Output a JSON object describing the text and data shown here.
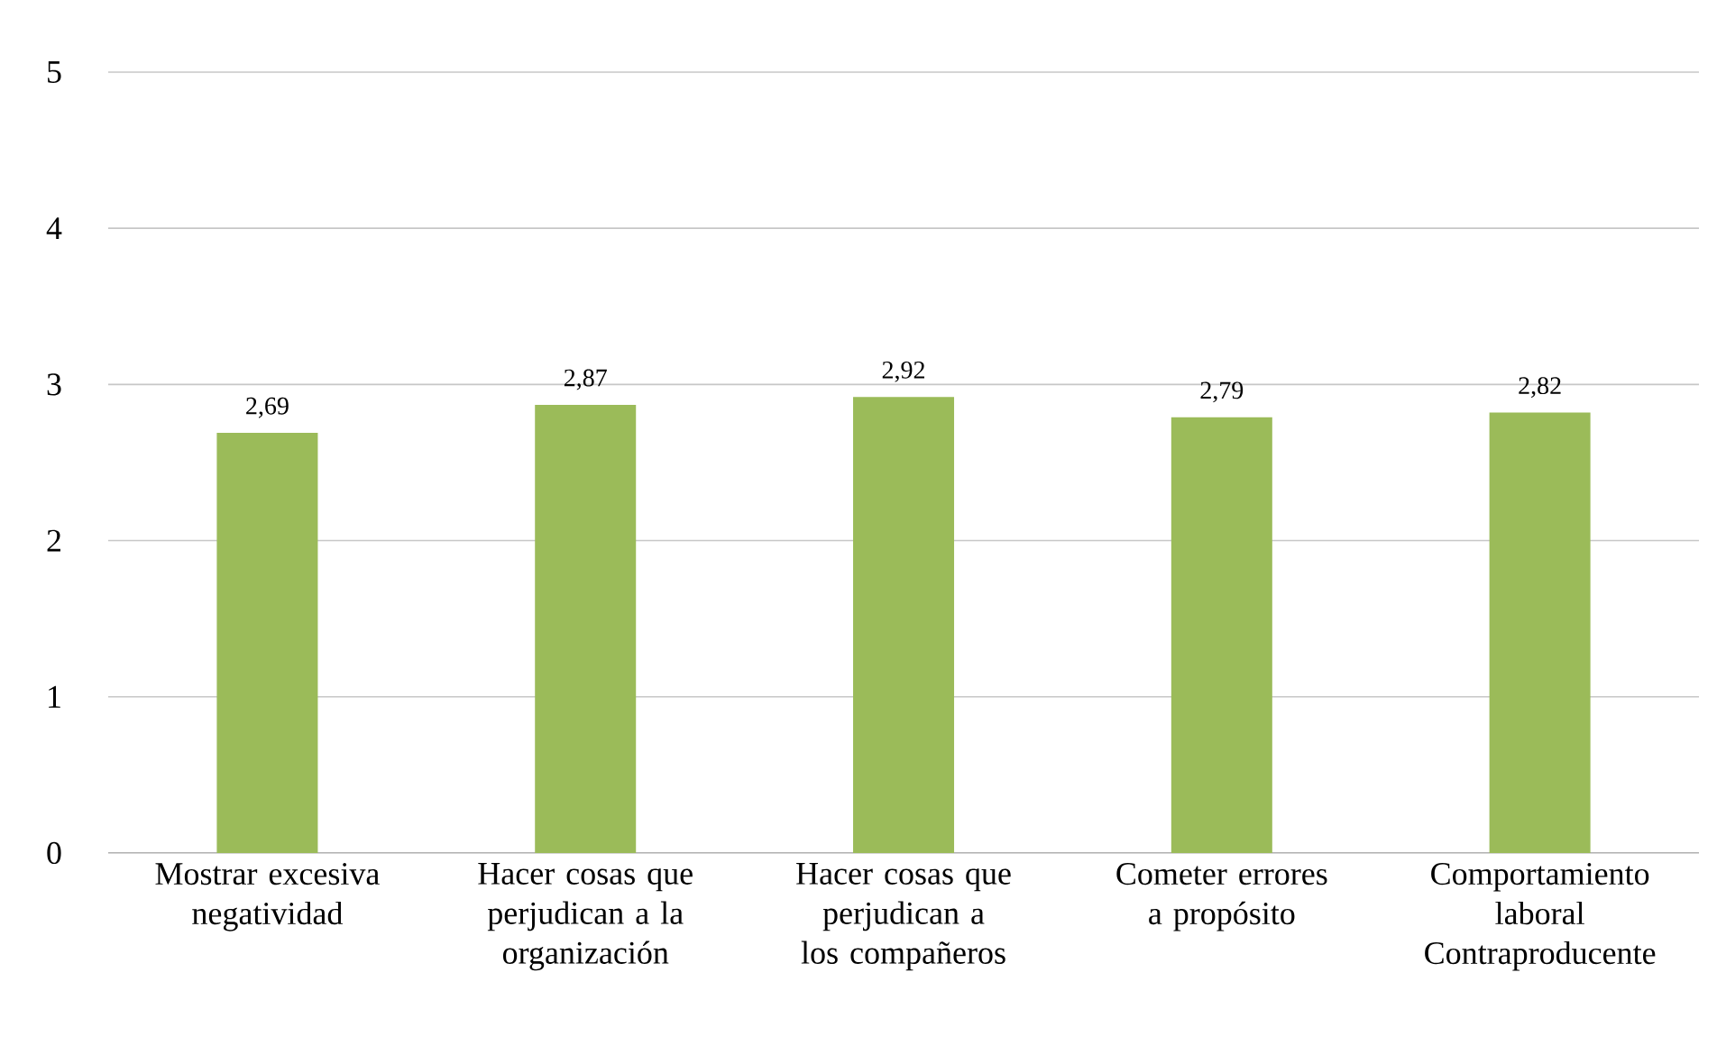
{
  "chart_data": {
    "type": "bar",
    "categories": [
      "Mostrar excesiva negatividad",
      "Hacer cosas que perjudican a la organización",
      "Hacer cosas que perjudican a los compañeros",
      "Cometer errores a propósito",
      "Comportamiento laboral Contraproducente"
    ],
    "values": [
      2.69,
      2.87,
      2.92,
      2.79,
      2.82
    ],
    "value_labels": [
      "2,69",
      "2,87",
      "2,92",
      "2,79",
      "2,82"
    ],
    "color": "#9bbb59",
    "ylim": [
      0,
      5
    ],
    "yticks": [
      0,
      1,
      2,
      3,
      4,
      5
    ],
    "grid": "y"
  }
}
